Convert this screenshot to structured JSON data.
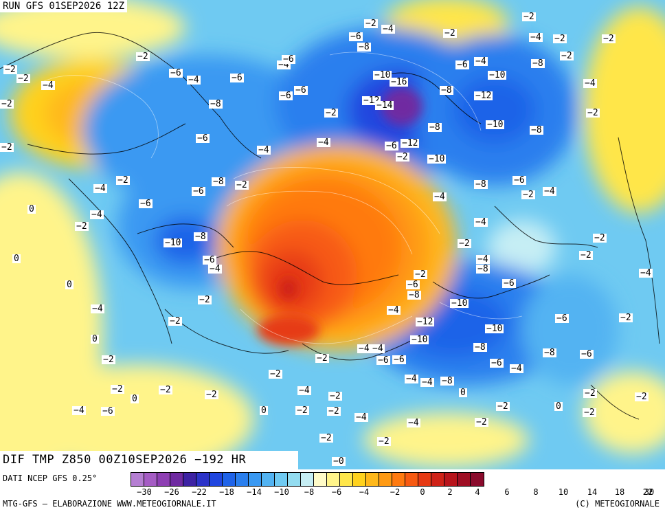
{
  "header": {
    "run": "RUN GFS 01SEP2026 12Z"
  },
  "map_title": "DIF TMP Z850 00Z10SEP2026 −192 HR",
  "data_source": "DATI NCEP GFS 0.25°",
  "credit_left": "MTG-GFS – ELABORAZIONE WWW.METEOGIORNALE.IT",
  "credit_right": "(C) METEOGIORNALE",
  "legend": {
    "colors": [
      "#b57fd2",
      "#a55cc4",
      "#8e3fb3",
      "#6f2aa1",
      "#3d22a3",
      "#2c33c8",
      "#2046df",
      "#1f63e8",
      "#2a7fee",
      "#3a99f2",
      "#52b3f2",
      "#6fcaf2",
      "#93dcf0",
      "#c6eef4",
      "#fffbc8",
      "#fff48a",
      "#ffe64a",
      "#ffd21e",
      "#ffb81a",
      "#ff9a14",
      "#ff7a10",
      "#f75a12",
      "#e63a14",
      "#cf2218",
      "#b8141c",
      "#9f0e24",
      "#8a0b2c"
    ],
    "ticks": [
      "−30",
      "−26",
      "−22",
      "−18",
      "−14",
      "−10",
      "−8",
      "−6",
      "−4",
      "−2",
      "0",
      "2",
      "4",
      "6",
      "8",
      "10",
      "14",
      "18",
      "22",
      "30"
    ]
  },
  "annotations": [
    {
      "t": "−2"
    },
    {
      "t": "−4"
    },
    {
      "t": "−2"
    },
    {
      "t": "−2"
    },
    {
      "t": "−6"
    },
    {
      "t": "−8"
    },
    {
      "t": "−4"
    },
    {
      "t": "−2"
    },
    {
      "t": "−2"
    },
    {
      "t": "−2"
    },
    {
      "t": "−4"
    },
    {
      "t": "−6"
    },
    {
      "t": "−2"
    },
    {
      "t": "−6"
    },
    {
      "t": "−4"
    },
    {
      "t": "−2"
    },
    {
      "t": "−2"
    },
    {
      "t": "−4"
    },
    {
      "t": "−6"
    },
    {
      "t": "−10"
    },
    {
      "t": "−16"
    },
    {
      "t": "−4"
    },
    {
      "t": "−10"
    },
    {
      "t": "−4"
    },
    {
      "t": "−6"
    },
    {
      "t": "−8"
    },
    {
      "t": "−8"
    },
    {
      "t": "−6"
    },
    {
      "t": "−12"
    },
    {
      "t": "−14"
    },
    {
      "t": "−12"
    },
    {
      "t": "−2"
    },
    {
      "t": "−2"
    },
    {
      "t": "−8"
    },
    {
      "t": "−10"
    },
    {
      "t": "−6"
    },
    {
      "t": "−2"
    },
    {
      "t": "−4"
    },
    {
      "t": "−8"
    },
    {
      "t": "−6"
    },
    {
      "t": "−8"
    },
    {
      "t": "−6"
    },
    {
      "t": "−12"
    },
    {
      "t": "−4"
    },
    {
      "t": "−2"
    },
    {
      "t": "−10"
    },
    {
      "t": "−8"
    },
    {
      "t": "−6"
    },
    {
      "t": "−2"
    },
    {
      "t": "−4"
    },
    {
      "t": "−2"
    },
    {
      "t": "−6"
    },
    {
      "t": "−8"
    },
    {
      "t": "−2"
    },
    {
      "t": "−4"
    },
    {
      "t": "−4"
    },
    {
      "t": "0"
    },
    {
      "t": "−6"
    },
    {
      "t": "−2"
    },
    {
      "t": "−4"
    },
    {
      "t": "−2"
    },
    {
      "t": "−10"
    },
    {
      "t": "−8"
    },
    {
      "t": "−4"
    },
    {
      "t": "−6"
    },
    {
      "t": "−4"
    },
    {
      "t": "−2"
    },
    {
      "t": "0"
    },
    {
      "t": "−2"
    },
    {
      "t": "−4"
    },
    {
      "t": "0"
    },
    {
      "t": "−2"
    },
    {
      "t": "−8"
    },
    {
      "t": "−4"
    },
    {
      "t": "−6"
    },
    {
      "t": "−6"
    },
    {
      "t": "−2"
    },
    {
      "t": "−10"
    },
    {
      "t": "−8"
    },
    {
      "t": "−4"
    },
    {
      "t": "−2"
    },
    {
      "t": "−4"
    },
    {
      "t": "−12"
    },
    {
      "t": "−10"
    },
    {
      "t": "−6"
    },
    {
      "t": "−2"
    },
    {
      "t": "−2"
    },
    {
      "t": "−10"
    },
    {
      "t": "−8"
    },
    {
      "t": "0"
    },
    {
      "t": "−2"
    },
    {
      "t": "−2"
    },
    {
      "t": "−4"
    },
    {
      "t": "−6"
    },
    {
      "t": "−8"
    },
    {
      "t": "−4"
    },
    {
      "t": "−6"
    },
    {
      "t": "−6"
    },
    {
      "t": "−4"
    },
    {
      "t": "−8"
    },
    {
      "t": "−6"
    },
    {
      "t": "−4"
    },
    {
      "t": "−4"
    },
    {
      "t": "−2"
    },
    {
      "t": "−2"
    },
    {
      "t": "−2"
    },
    {
      "t": "−4"
    },
    {
      "t": "0"
    },
    {
      "t": "−2"
    },
    {
      "t": "0"
    },
    {
      "t": "−2"
    },
    {
      "t": "−2"
    },
    {
      "t": "−2"
    },
    {
      "t": "−4"
    },
    {
      "t": "−6"
    },
    {
      "t": "−2"
    },
    {
      "t": "0"
    },
    {
      "t": "−2"
    },
    {
      "t": "−2"
    },
    {
      "t": "−2"
    },
    {
      "t": "−4"
    },
    {
      "t": "0"
    },
    {
      "t": "−4"
    },
    {
      "t": "−2"
    },
    {
      "t": "−2"
    },
    {
      "t": "−2"
    },
    {
      "t": "−0"
    }
  ]
}
